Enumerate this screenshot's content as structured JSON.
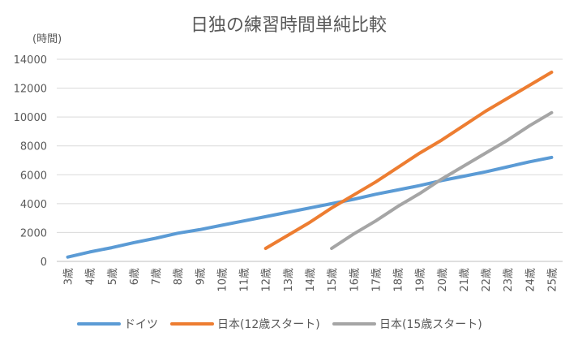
{
  "chart_data": {
    "type": "line",
    "title": "日独の練習時間単純比較",
    "ylabel": "(時間)",
    "xlabel": "",
    "ylim": [
      0,
      14000
    ],
    "yticks": [
      0,
      2000,
      4000,
      6000,
      8000,
      10000,
      12000,
      14000
    ],
    "grid": true,
    "legend_position": "bottom",
    "categories": [
      "3歳",
      "4歳",
      "5歳",
      "6歳",
      "7歳",
      "8歳",
      "9歳",
      "10歳",
      "11歳",
      "12歳",
      "13歳",
      "14歳",
      "15歳",
      "16歳",
      "17歳",
      "18歳",
      "19歳",
      "20歳",
      "21歳",
      "22歳",
      "23歳",
      "24歳",
      "25歳"
    ],
    "series": [
      {
        "name": "ドイツ",
        "color": "#5B9BD5",
        "values": [
          300,
          650,
          950,
          1300,
          1600,
          1950,
          2200,
          2500,
          2800,
          3100,
          3400,
          3700,
          4000,
          4300,
          4650,
          4950,
          5250,
          5600,
          5900,
          6200,
          6550,
          6900,
          7200
        ]
      },
      {
        "name": "日本(12歳スタート)",
        "color": "#ED7D31",
        "values": [
          null,
          null,
          null,
          null,
          null,
          null,
          null,
          null,
          null,
          900,
          1800,
          2700,
          3700,
          4600,
          5500,
          6500,
          7500,
          8400,
          9400,
          10400,
          11300,
          12200,
          13100
        ]
      },
      {
        "name": "日本(15歳スタート)",
        "color": "#A5A5A5",
        "values": [
          null,
          null,
          null,
          null,
          null,
          null,
          null,
          null,
          null,
          null,
          null,
          null,
          900,
          1900,
          2800,
          3800,
          4700,
          5700,
          6600,
          7500,
          8400,
          9400,
          10300
        ]
      }
    ]
  }
}
